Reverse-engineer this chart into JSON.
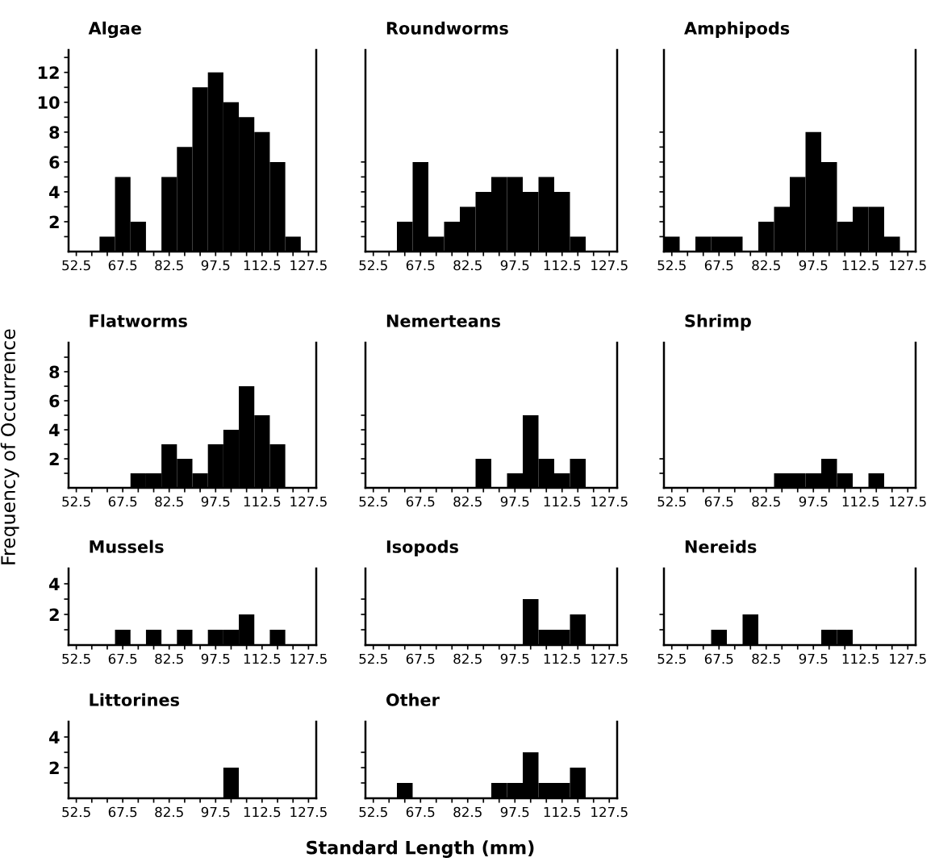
{
  "chart_data": [
    {
      "type": "histogram",
      "title": "Algae",
      "color": "#000000",
      "bins": [
        50,
        55,
        60,
        65,
        70,
        75,
        80,
        85,
        90,
        95,
        100,
        105,
        110,
        115,
        120,
        125,
        130
      ],
      "values": [
        0,
        0,
        1,
        5,
        2,
        0,
        5,
        7,
        11,
        12,
        10,
        9,
        8,
        6,
        1,
        0
      ],
      "xlim": [
        50,
        130
      ],
      "xticks": [
        52.5,
        {
          "value": 57.5,
          "label": null
        },
        {
          "value": 62.5,
          "label": null
        },
        67.5,
        {
          "value": 72.5,
          "label": null
        },
        {
          "value": 77.5,
          "label": null
        },
        82.5,
        {
          "value": 87.5,
          "label": null
        },
        {
          "value": 92.5,
          "label": null
        },
        97.5,
        {
          "value": 102.5,
          "label": null
        },
        {
          "value": 107.5,
          "label": null
        },
        112.5,
        {
          "value": 117.5,
          "label": null
        },
        {
          "value": 122.5,
          "label": null
        },
        127.5
      ],
      "ylim": [
        0,
        13.5
      ],
      "yticks": [
        {
          "value": 1,
          "label": null
        },
        2,
        {
          "value": 3,
          "label": null
        },
        4,
        {
          "value": 5,
          "label": null
        },
        6,
        {
          "value": 7,
          "label": null
        },
        8,
        {
          "value": 9,
          "label": null
        },
        10,
        {
          "value": 11,
          "label": null
        },
        12,
        {
          "value": 13,
          "label": null
        }
      ]
    },
    {
      "type": "histogram",
      "title": "Roundworms",
      "color": "#000000",
      "bins": [
        50,
        55,
        60,
        65,
        70,
        75,
        80,
        85,
        90,
        95,
        100,
        105,
        110,
        115,
        120,
        125,
        130
      ],
      "values": [
        0,
        0,
        2,
        6,
        1,
        2,
        3,
        4,
        5,
        5,
        4,
        5,
        4,
        1,
        0,
        0
      ],
      "xlim": [
        50,
        130
      ],
      "xticks": [
        52.5,
        {
          "value": 57.5,
          "label": null
        },
        {
          "value": 62.5,
          "label": null
        },
        67.5,
        {
          "value": 72.5,
          "label": null
        },
        {
          "value": 77.5,
          "label": null
        },
        82.5,
        {
          "value": 87.5,
          "label": null
        },
        {
          "value": 92.5,
          "label": null
        },
        97.5,
        {
          "value": 102.5,
          "label": null
        },
        {
          "value": 107.5,
          "label": null
        },
        112.5,
        {
          "value": 117.5,
          "label": null
        },
        {
          "value": 122.5,
          "label": null
        },
        127.5
      ],
      "ylim": [
        0,
        13.5
      ],
      "yticks": [
        {
          "value": 1,
          "label": null
        },
        {
          "value": 2,
          "label": null
        },
        {
          "value": 3,
          "label": null
        },
        {
          "value": 4,
          "label": null
        },
        {
          "value": 5,
          "label": null
        },
        {
          "value": 6,
          "label": null
        }
      ],
      "tick_labels": "x"
    },
    {
      "type": "histogram",
      "title": "Amphipods",
      "color": "#000000",
      "bins": [
        50,
        55,
        60,
        65,
        70,
        75,
        80,
        85,
        90,
        95,
        100,
        105,
        110,
        115,
        120,
        125,
        130
      ],
      "values": [
        1,
        0,
        1,
        1,
        1,
        0,
        2,
        3,
        5,
        8,
        6,
        2,
        3,
        3,
        1,
        0
      ],
      "xlim": [
        50,
        130
      ],
      "xticks": [
        52.5,
        {
          "value": 57.5,
          "label": null
        },
        {
          "value": 62.5,
          "label": null
        },
        67.5,
        {
          "value": 72.5,
          "label": null
        },
        {
          "value": 77.5,
          "label": null
        },
        82.5,
        {
          "value": 87.5,
          "label": null
        },
        {
          "value": 92.5,
          "label": null
        },
        97.5,
        {
          "value": 102.5,
          "label": null
        },
        {
          "value": 107.5,
          "label": null
        },
        112.5,
        {
          "value": 117.5,
          "label": null
        },
        {
          "value": 122.5,
          "label": null
        },
        127.5
      ],
      "ylim": [
        0,
        13.5
      ],
      "yticks": [
        {
          "value": 1,
          "label": null
        },
        {
          "value": 2,
          "label": null
        },
        {
          "value": 3,
          "label": null
        },
        {
          "value": 4,
          "label": null
        },
        {
          "value": 5,
          "label": null
        },
        {
          "value": 6,
          "label": null
        },
        {
          "value": 7,
          "label": null
        },
        {
          "value": 8,
          "label": null
        }
      ],
      "tick_labels": "x"
    },
    {
      "type": "histogram",
      "title": "Flatworms",
      "ylabel": "Frequency of Occurrence",
      "color": "#000000",
      "bins": [
        50,
        55,
        60,
        65,
        70,
        75,
        80,
        85,
        90,
        95,
        100,
        105,
        110,
        115,
        120,
        125,
        130
      ],
      "values": [
        0,
        0,
        0,
        0,
        1,
        1,
        3,
        2,
        1,
        3,
        4,
        7,
        5,
        3,
        0,
        0
      ],
      "xlim": [
        50,
        130
      ],
      "xticks": [
        52.5,
        {
          "value": 57.5,
          "label": null
        },
        {
          "value": 62.5,
          "label": null
        },
        67.5,
        {
          "value": 72.5,
          "label": null
        },
        {
          "value": 77.5,
          "label": null
        },
        82.5,
        {
          "value": 87.5,
          "label": null
        },
        {
          "value": 92.5,
          "label": null
        },
        97.5,
        {
          "value": 102.5,
          "label": null
        },
        {
          "value": 107.5,
          "label": null
        },
        112.5,
        {
          "value": 117.5,
          "label": null
        },
        {
          "value": 122.5,
          "label": null
        },
        127.5
      ],
      "ylim": [
        0,
        10
      ],
      "yticks": [
        {
          "value": 1,
          "label": null
        },
        2,
        {
          "value": 3,
          "label": null
        },
        4,
        {
          "value": 5,
          "label": null
        },
        6,
        {
          "value": 7,
          "label": null
        },
        8,
        {
          "value": 9,
          "label": null
        }
      ]
    },
    {
      "type": "histogram",
      "title": "Nemerteans",
      "color": "#000000",
      "bins": [
        50,
        55,
        60,
        65,
        70,
        75,
        80,
        85,
        90,
        95,
        100,
        105,
        110,
        115,
        120,
        125,
        130
      ],
      "values": [
        0,
        0,
        0,
        0,
        0,
        0,
        0,
        2,
        0,
        1,
        5,
        2,
        1,
        2,
        0,
        0
      ],
      "xlim": [
        50,
        130
      ],
      "xticks": [
        52.5,
        {
          "value": 57.5,
          "label": null
        },
        {
          "value": 62.5,
          "label": null
        },
        67.5,
        {
          "value": 72.5,
          "label": null
        },
        {
          "value": 77.5,
          "label": null
        },
        82.5,
        {
          "value": 87.5,
          "label": null
        },
        {
          "value": 92.5,
          "label": null
        },
        97.5,
        {
          "value": 102.5,
          "label": null
        },
        {
          "value": 107.5,
          "label": null
        },
        112.5,
        {
          "value": 117.5,
          "label": null
        },
        {
          "value": 122.5,
          "label": null
        },
        127.5
      ],
      "ylim": [
        0,
        10
      ],
      "yticks": [
        {
          "value": 1,
          "label": null
        },
        {
          "value": 2,
          "label": null
        },
        {
          "value": 3,
          "label": null
        },
        {
          "value": 4,
          "label": null
        },
        {
          "value": 5,
          "label": null
        }
      ],
      "tick_labels": "x"
    },
    {
      "type": "histogram",
      "title": "Shrimp",
      "color": "#000000",
      "bins": [
        50,
        55,
        60,
        65,
        70,
        75,
        80,
        85,
        90,
        95,
        100,
        105,
        110,
        115,
        120,
        125,
        130
      ],
      "values": [
        0,
        0,
        0,
        0,
        0,
        0,
        0,
        1,
        1,
        1,
        2,
        1,
        0,
        1,
        0,
        0
      ],
      "xlim": [
        50,
        130
      ],
      "xticks": [
        52.5,
        {
          "value": 57.5,
          "label": null
        },
        {
          "value": 62.5,
          "label": null
        },
        67.5,
        {
          "value": 72.5,
          "label": null
        },
        {
          "value": 77.5,
          "label": null
        },
        82.5,
        {
          "value": 87.5,
          "label": null
        },
        {
          "value": 92.5,
          "label": null
        },
        97.5,
        {
          "value": 102.5,
          "label": null
        },
        {
          "value": 107.5,
          "label": null
        },
        112.5,
        {
          "value": 117.5,
          "label": null
        },
        {
          "value": 122.5,
          "label": null
        },
        127.5
      ],
      "ylim": [
        0,
        10
      ],
      "yticks": [
        {
          "value": 1,
          "label": null
        },
        {
          "value": 2,
          "label": null
        }
      ],
      "tick_labels": "x"
    },
    {
      "type": "histogram",
      "title": "Mussels",
      "color": "#000000",
      "bins": [
        50,
        55,
        60,
        65,
        70,
        75,
        80,
        85,
        90,
        95,
        100,
        105,
        110,
        115,
        120,
        125,
        130
      ],
      "values": [
        0,
        0,
        0,
        1,
        0,
        1,
        0,
        1,
        0,
        1,
        1,
        2,
        0,
        1,
        0,
        0
      ],
      "xlim": [
        50,
        130
      ],
      "xticks": [
        52.5,
        {
          "value": 57.5,
          "label": null
        },
        {
          "value": 62.5,
          "label": null
        },
        67.5,
        {
          "value": 72.5,
          "label": null
        },
        {
          "value": 77.5,
          "label": null
        },
        82.5,
        {
          "value": 87.5,
          "label": null
        },
        {
          "value": 92.5,
          "label": null
        },
        97.5,
        {
          "value": 102.5,
          "label": null
        },
        {
          "value": 107.5,
          "label": null
        },
        112.5,
        {
          "value": 117.5,
          "label": null
        },
        {
          "value": 122.5,
          "label": null
        },
        127.5
      ],
      "ylim": [
        0,
        5
      ],
      "yticks": [
        {
          "value": 1,
          "label": null
        },
        2,
        {
          "value": 3,
          "label": null
        },
        4
      ]
    },
    {
      "type": "histogram",
      "title": "Isopods",
      "color": "#000000",
      "bins": [
        50,
        55,
        60,
        65,
        70,
        75,
        80,
        85,
        90,
        95,
        100,
        105,
        110,
        115,
        120,
        125,
        130
      ],
      "values": [
        0,
        0,
        0,
        0,
        0,
        0,
        0,
        0,
        0,
        0,
        3,
        1,
        1,
        2,
        0,
        0
      ],
      "xlim": [
        50,
        130
      ],
      "xticks": [
        52.5,
        {
          "value": 57.5,
          "label": null
        },
        {
          "value": 62.5,
          "label": null
        },
        67.5,
        {
          "value": 72.5,
          "label": null
        },
        {
          "value": 77.5,
          "label": null
        },
        82.5,
        {
          "value": 87.5,
          "label": null
        },
        {
          "value": 92.5,
          "label": null
        },
        97.5,
        {
          "value": 102.5,
          "label": null
        },
        {
          "value": 107.5,
          "label": null
        },
        112.5,
        {
          "value": 117.5,
          "label": null
        },
        {
          "value": 122.5,
          "label": null
        },
        127.5
      ],
      "ylim": [
        0,
        5
      ],
      "yticks": [
        {
          "value": 1,
          "label": null
        },
        {
          "value": 2,
          "label": null
        },
        {
          "value": 3,
          "label": null
        }
      ],
      "tick_labels": "x"
    },
    {
      "type": "histogram",
      "title": "Nereids",
      "color": "#000000",
      "bins": [
        50,
        55,
        60,
        65,
        70,
        75,
        80,
        85,
        90,
        95,
        100,
        105,
        110,
        115,
        120,
        125,
        130
      ],
      "values": [
        0,
        0,
        0,
        1,
        0,
        2,
        0,
        0,
        0,
        0,
        1,
        1,
        0,
        0,
        0,
        0
      ],
      "xlim": [
        50,
        130
      ],
      "xticks": [
        52.5,
        {
          "value": 57.5,
          "label": null
        },
        {
          "value": 62.5,
          "label": null
        },
        67.5,
        {
          "value": 72.5,
          "label": null
        },
        {
          "value": 77.5,
          "label": null
        },
        82.5,
        {
          "value": 87.5,
          "label": null
        },
        {
          "value": 92.5,
          "label": null
        },
        97.5,
        {
          "value": 102.5,
          "label": null
        },
        {
          "value": 107.5,
          "label": null
        },
        112.5,
        {
          "value": 117.5,
          "label": null
        },
        {
          "value": 122.5,
          "label": null
        },
        127.5
      ],
      "ylim": [
        0,
        5
      ],
      "yticks": [
        {
          "value": 1,
          "label": null
        },
        {
          "value": 2,
          "label": null
        }
      ],
      "tick_labels": "x"
    },
    {
      "type": "histogram",
      "title": "Littorines",
      "xlabel": "Standard Length (mm)",
      "color": "#000000",
      "bins": [
        50,
        55,
        60,
        65,
        70,
        75,
        80,
        85,
        90,
        95,
        100,
        105,
        110,
        115,
        120,
        125,
        130
      ],
      "values": [
        0,
        0,
        0,
        0,
        0,
        0,
        0,
        0,
        0,
        0,
        2,
        0,
        0,
        0,
        0,
        0
      ],
      "xlim": [
        50,
        130
      ],
      "xticks": [
        52.5,
        {
          "value": 57.5,
          "label": null
        },
        {
          "value": 62.5,
          "label": null
        },
        67.5,
        {
          "value": 72.5,
          "label": null
        },
        {
          "value": 77.5,
          "label": null
        },
        82.5,
        {
          "value": 87.5,
          "label": null
        },
        {
          "value": 92.5,
          "label": null
        },
        97.5,
        {
          "value": 102.5,
          "label": null
        },
        {
          "value": 107.5,
          "label": null
        },
        112.5,
        {
          "value": 117.5,
          "label": null
        },
        {
          "value": 122.5,
          "label": null
        },
        127.5
      ],
      "ylim": [
        0,
        5
      ],
      "yticks": [
        {
          "value": 1,
          "label": null
        },
        2,
        {
          "value": 3,
          "label": null
        },
        4
      ]
    },
    {
      "type": "histogram",
      "title": "Other",
      "color": "#000000",
      "bins": [
        50,
        55,
        60,
        65,
        70,
        75,
        80,
        85,
        90,
        95,
        100,
        105,
        110,
        115,
        120,
        125,
        130
      ],
      "values": [
        0,
        0,
        1,
        0,
        0,
        0,
        0,
        0,
        1,
        1,
        3,
        1,
        1,
        2,
        0,
        0
      ],
      "xlim": [
        50,
        130
      ],
      "xticks": [
        52.5,
        {
          "value": 57.5,
          "label": null
        },
        {
          "value": 62.5,
          "label": null
        },
        67.5,
        {
          "value": 72.5,
          "label": null
        },
        {
          "value": 77.5,
          "label": null
        },
        82.5,
        {
          "value": 87.5,
          "label": null
        },
        {
          "value": 92.5,
          "label": null
        },
        97.5,
        {
          "value": 102.5,
          "label": null
        },
        {
          "value": 107.5,
          "label": null
        },
        112.5,
        {
          "value": 117.5,
          "label": null
        },
        {
          "value": 122.5,
          "label": null
        },
        127.5
      ],
      "ylim": [
        0,
        5
      ],
      "yticks": [
        {
          "value": 1,
          "label": null
        },
        {
          "value": 2,
          "label": null
        },
        {
          "value": 3,
          "label": null
        }
      ],
      "tick_labels": "x"
    }
  ]
}
